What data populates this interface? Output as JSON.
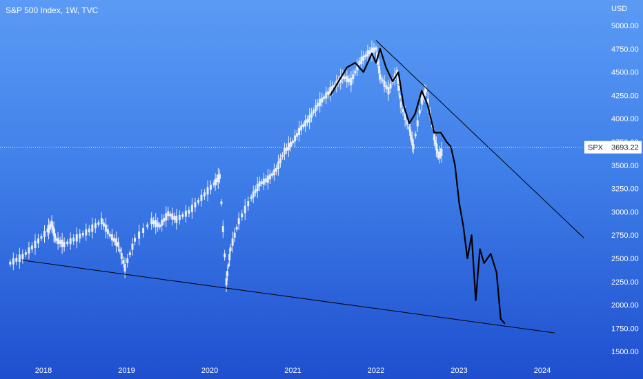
{
  "header": {
    "title": "S&P 500 Index, 1W, TVC",
    "currency": "USD"
  },
  "price_tag": {
    "symbol": "SPX",
    "value": "3693.22"
  },
  "colors": {
    "candles": "#e8eefc",
    "overlay_line": "#000000",
    "trendline": "#000000",
    "axis_text": "#ffffff",
    "crosshair": "#ffffff"
  },
  "chart_data": {
    "type": "line",
    "title": "S&P 500 Index, 1W, TVC",
    "xlabel": "",
    "ylabel": "",
    "ylim": [
      1450,
      5100
    ],
    "y_ticks": [
      "5000.00",
      "4750.00",
      "4500.00",
      "4250.00",
      "4000.00",
      "3750.00",
      "3500.00",
      "3250.00",
      "3000.00",
      "2750.00",
      "2500.00",
      "2250.00",
      "2000.00",
      "1750.00",
      "1500.00"
    ],
    "x_ticks": [
      "2018",
      "2019",
      "2020",
      "2021",
      "2022",
      "2023",
      "2024"
    ],
    "xlim": [
      2017.6,
      2024.8
    ],
    "current_price": 3693.22,
    "series": [
      {
        "name": "SPX",
        "style": "candles",
        "x": [
          2017.6,
          2017.75,
          2017.9,
          2018.05,
          2018.1,
          2018.15,
          2018.25,
          2018.4,
          2018.55,
          2018.7,
          2018.8,
          2018.9,
          2018.98,
          2019.1,
          2019.3,
          2019.4,
          2019.5,
          2019.6,
          2019.75,
          2019.9,
          2020.05,
          2020.12,
          2020.2,
          2020.25,
          2020.35,
          2020.5,
          2020.6,
          2020.7,
          2020.8,
          2020.9,
          2021.0,
          2021.1,
          2021.2,
          2021.3,
          2021.4,
          2021.5,
          2021.6,
          2021.7,
          2021.8,
          2021.9,
          2022.0,
          2022.05,
          2022.15,
          2022.25,
          2022.3,
          2022.4,
          2022.45,
          2022.55,
          2022.6,
          2022.7,
          2022.75,
          2022.8
        ],
        "y": [
          2450,
          2520,
          2650,
          2800,
          2870,
          2700,
          2650,
          2720,
          2800,
          2900,
          2750,
          2650,
          2400,
          2700,
          2900,
          2850,
          2980,
          2920,
          3000,
          3150,
          3300,
          3380,
          2250,
          2600,
          2900,
          3150,
          3300,
          3350,
          3450,
          3650,
          3750,
          3900,
          4000,
          4150,
          4250,
          4350,
          4450,
          4400,
          4600,
          4700,
          4750,
          4450,
          4300,
          4500,
          4150,
          3900,
          3700,
          4200,
          4300,
          3800,
          3600,
          3650
        ]
      },
      {
        "name": "Overlay",
        "style": "line",
        "x": [
          2021.45,
          2021.55,
          2021.65,
          2021.75,
          2021.85,
          2021.95,
          2022.0,
          2022.05,
          2022.12,
          2022.2,
          2022.27,
          2022.33,
          2022.4,
          2022.47,
          2022.55,
          2022.62,
          2022.7,
          2022.78,
          2022.85,
          2022.9,
          2022.95,
          2023.0,
          2023.05,
          2023.1,
          2023.15,
          2023.2,
          2023.25,
          2023.3,
          2023.38,
          2023.45,
          2023.5,
          2023.55
        ],
        "y": [
          4250,
          4400,
          4550,
          4600,
          4500,
          4700,
          4600,
          4750,
          4550,
          4400,
          4500,
          4150,
          3950,
          4050,
          4300,
          4150,
          3850,
          3850,
          3750,
          3700,
          3500,
          3100,
          2850,
          2500,
          2750,
          2050,
          2600,
          2450,
          2550,
          2350,
          1850,
          1800
        ]
      }
    ],
    "trendlines": [
      {
        "x": [
          2022.0,
          2024.5
        ],
        "y": [
          4840,
          2720
        ]
      },
      {
        "x": [
          2017.75,
          2024.15
        ],
        "y": [
          2480,
          1700
        ]
      }
    ]
  }
}
